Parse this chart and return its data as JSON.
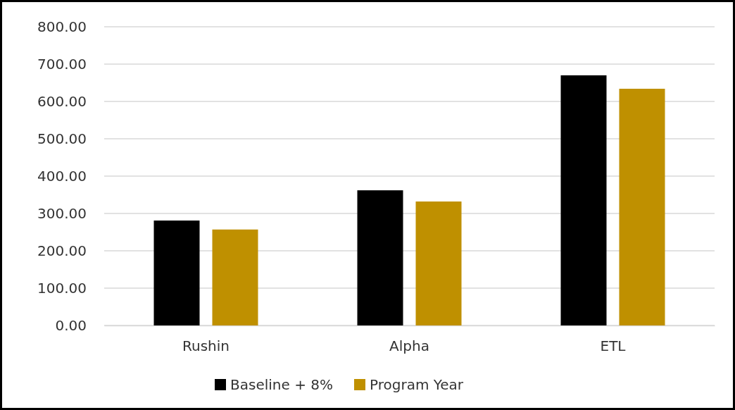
{
  "chart_data": {
    "type": "bar",
    "categories": [
      "Rushin",
      "Alpha",
      "ETL"
    ],
    "series": [
      {
        "name": "Baseline + 8%",
        "color": "#000000",
        "values": [
          281,
          362,
          670
        ]
      },
      {
        "name": "Program Year",
        "color": "#bf9000",
        "values": [
          257,
          332,
          634
        ]
      }
    ],
    "ylim": [
      0,
      800
    ],
    "yticks": [
      {
        "value": 0,
        "label": "0.00"
      },
      {
        "value": 100,
        "label": "100.00"
      },
      {
        "value": 200,
        "label": "200.00"
      },
      {
        "value": 300,
        "label": "300.00"
      },
      {
        "value": 400,
        "label": "400.00"
      },
      {
        "value": 500,
        "label": "500.00"
      },
      {
        "value": 600,
        "label": "600.00"
      },
      {
        "value": 700,
        "label": "700.00"
      },
      {
        "value": 800,
        "label": "800.00"
      }
    ],
    "grid": "y",
    "legend": "bottom"
  }
}
